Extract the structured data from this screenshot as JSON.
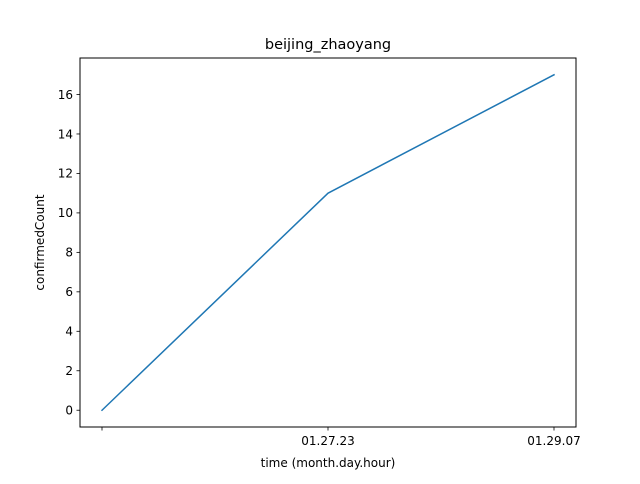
{
  "chart_data": {
    "type": "line",
    "title": "beijing_zhaoyang",
    "xlabel": "time (month.day.hour)",
    "ylabel": "confirmedCount",
    "x": [
      "",
      "01.27.23",
      "01.29.07"
    ],
    "series": [
      {
        "values": [
          0,
          11,
          17
        ],
        "color": "#1f77b4"
      }
    ],
    "ylim": [
      -0.85,
      17.85
    ],
    "yticks": [
      0,
      2,
      4,
      6,
      8,
      10,
      12,
      14,
      16
    ],
    "grid": false,
    "legend": "none"
  }
}
